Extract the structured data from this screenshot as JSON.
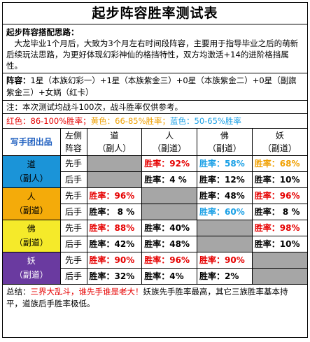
{
  "title": "起步阵容胜率测试表",
  "intro": {
    "heading": "起步阵容搭配思路：",
    "body": "大龙毕业1个月后，大致为3个月左右时间段阵容，主要用于指导毕业之后的萌新后续玩法思路，为更好体现幻彩神仙的格挡特性，双方均激活+14的进阶格挡属性。"
  },
  "lineup": {
    "label": "阵容：",
    "text": "1星（本族幻彩一）+1星（本族紫金三）+0星（本族紫金二）+0星（副旗紫金三）+女娲（红卡）"
  },
  "note": "注：本次测试均战斗100次，战斗胜率仅供参考。",
  "legend": {
    "red": "红色：86-100%胜率；",
    "yellow": "黄色：66-85%胜率；",
    "blue": "蓝色：50-65%胜率"
  },
  "colors": {
    "red": "#e60000",
    "yellow": "#f0a000",
    "blue": "#1aa0e6",
    "dao": "#1b94d8",
    "ren": "#f4ab0a",
    "fo": "#f5ea2a",
    "yao": "#6a3aa0",
    "gray": "#a6a6a6"
  },
  "table": {
    "corner": "写手团出品",
    "left_header": [
      "左侧",
      "阵容"
    ],
    "columns": [
      {
        "name": "道",
        "sub": "（副人）"
      },
      {
        "name": "人",
        "sub": "（副道）"
      },
      {
        "name": "佛",
        "sub": "（副道）"
      },
      {
        "name": "妖",
        "sub": "（副道）"
      }
    ],
    "rows": [
      {
        "name": "道",
        "sub": "（副人）",
        "cls": "dao",
        "first": {
          "hand": "先手",
          "cells": [
            null,
            {
              "t": "胜率：92%",
              "c": "red"
            },
            {
              "t": "胜率：58%",
              "c": "blu"
            },
            {
              "t": "胜率：68%",
              "c": "yel"
            }
          ]
        },
        "second": {
          "hand": "后手",
          "cells": [
            null,
            {
              "t": "胜率：4  %",
              "c": "blk"
            },
            {
              "t": "胜率：12%",
              "c": "blk"
            },
            {
              "t": "胜率：10%",
              "c": "blk"
            }
          ]
        }
      },
      {
        "name": "人",
        "sub": "（副道）",
        "cls": "ren",
        "first": {
          "hand": "先手",
          "cells": [
            {
              "t": "胜率：96%",
              "c": "red"
            },
            null,
            {
              "t": "胜率：48%",
              "c": "blk"
            },
            {
              "t": "胜率：96%",
              "c": "red"
            }
          ]
        },
        "second": {
          "hand": "后手",
          "cells": [
            {
              "t": "胜率：  8  %",
              "c": "blk"
            },
            null,
            {
              "t": "胜率：60%",
              "c": "blu"
            },
            {
              "t": "胜率：  8  %",
              "c": "blk"
            }
          ]
        }
      },
      {
        "name": "佛",
        "sub": "（副道）",
        "cls": "fo",
        "first": {
          "hand": "先手",
          "cells": [
            {
              "t": "胜率：88%",
              "c": "red"
            },
            {
              "t": "胜率：40%",
              "c": "blk"
            },
            null,
            {
              "t": "胜率：98%",
              "c": "red"
            }
          ]
        },
        "second": {
          "hand": "后手",
          "cells": [
            {
              "t": "胜率：42%",
              "c": "blk"
            },
            {
              "t": "胜率：48%",
              "c": "blk"
            },
            null,
            {
              "t": "胜率：10%",
              "c": "blk"
            }
          ]
        }
      },
      {
        "name": "妖",
        "sub": "（副道）",
        "cls": "yao",
        "first": {
          "hand": "先手",
          "cells": [
            {
              "t": "胜率：90%",
              "c": "red"
            },
            {
              "t": "胜率：96%",
              "c": "red"
            },
            {
              "t": "胜率：90%",
              "c": "red"
            },
            null
          ]
        },
        "second": {
          "hand": "后手",
          "cells": [
            {
              "t": "胜率：32%",
              "c": "blk"
            },
            {
              "t": "胜率：4%",
              "c": "blk"
            },
            {
              "t": "胜率：2%",
              "c": "blk"
            },
            null
          ]
        }
      }
    ]
  },
  "summary": {
    "label": "总结：",
    "highlight": "三界大乱斗，谁先手谁是老大！",
    "rest": "妖族先手胜率最高，其它三族胜率基本持平，道族后手胜率极低。"
  }
}
